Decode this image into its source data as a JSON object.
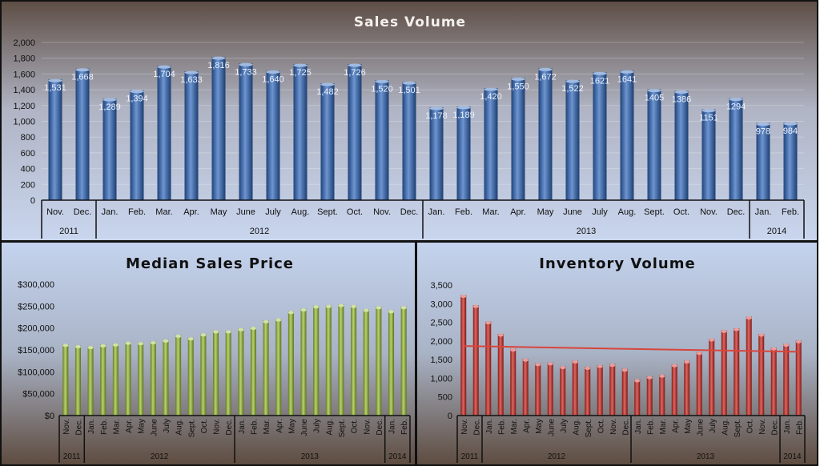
{
  "months": [
    "Nov.",
    "Dec.",
    "Jan.",
    "Feb.",
    "Mar.",
    "Apr.",
    "May",
    "June",
    "July",
    "Aug.",
    "Sept.",
    "Oct.",
    "Nov.",
    "Dec.",
    "Jan.",
    "Feb.",
    "Mar.",
    "Apr.",
    "May",
    "June",
    "July",
    "Aug.",
    "Sept.",
    "Oct.",
    "Nov.",
    "Dec.",
    "Jan.",
    "Feb."
  ],
  "years": [
    {
      "label": "2011",
      "count": 2
    },
    {
      "label": "2012",
      "count": 12
    },
    {
      "label": "2013",
      "count": 12
    },
    {
      "label": "2014",
      "count": 2
    }
  ],
  "chart_data": [
    {
      "id": "sales-volume",
      "type": "bar",
      "title": "Sales Volume",
      "color": "#2f67bd",
      "ylim": [
        0,
        2000
      ],
      "yticks": [
        0,
        200,
        400,
        600,
        800,
        1000,
        1200,
        1400,
        1600,
        1800,
        2000
      ],
      "ytick_labels": [
        "0",
        "200",
        "400",
        "600",
        "800",
        "1,000",
        "1,200",
        "1,400",
        "1,600",
        "1,800",
        "2,000"
      ],
      "grid": true,
      "values": [
        1531,
        1668,
        1289,
        1394,
        1704,
        1633,
        1816,
        1733,
        1640,
        1725,
        1482,
        1726,
        1520,
        1501,
        1178,
        1189,
        1420,
        1550,
        1672,
        1522,
        1621,
        1641,
        1405,
        1386,
        1151,
        1294,
        978,
        984
      ],
      "data_labels": [
        "1,531",
        "1,668",
        "1,289",
        "1,394",
        "1,704",
        "1,633",
        "1,816",
        "1,733",
        "1,640",
        "1,725",
        "1,482",
        "1,726",
        "1,520",
        "1,501",
        "1,178",
        "1,189",
        "1,420",
        "1,550",
        "1,672",
        "1,522",
        "1621",
        "1641",
        "1405",
        "1386",
        "1151",
        "1294",
        "978",
        "984"
      ]
    },
    {
      "id": "median-sales-price",
      "type": "bar",
      "title": "Median Sales Price",
      "color": "#9bc032",
      "ylim": [
        0,
        300000
      ],
      "yticks": [
        0,
        50000,
        100000,
        150000,
        200000,
        250000,
        300000
      ],
      "ytick_labels": [
        "$0",
        "$50,000",
        "$100,000",
        "$150,000",
        "$200,000",
        "$250,000",
        "$300,000"
      ],
      "grid": false,
      "values": [
        163000,
        160000,
        158000,
        162000,
        164000,
        168000,
        167000,
        169000,
        173000,
        184000,
        178000,
        187000,
        194000,
        194000,
        199000,
        202000,
        217000,
        221000,
        238000,
        244000,
        251000,
        252000,
        254000,
        252000,
        243000,
        249000,
        240000,
        249000
      ]
    },
    {
      "id": "inventory-volume",
      "type": "bar",
      "title": "Inventory Volume",
      "color": "#d0261f",
      "ylim": [
        0,
        3500
      ],
      "yticks": [
        0,
        500,
        1000,
        1500,
        2000,
        2500,
        3000,
        3500
      ],
      "ytick_labels": [
        "0",
        "500",
        "1,000",
        "1,500",
        "2,000",
        "2,500",
        "3,000",
        "3,500"
      ],
      "grid": false,
      "trendline": "linear",
      "values": [
        3230,
        2960,
        2520,
        2190,
        1790,
        1520,
        1400,
        1420,
        1320,
        1470,
        1300,
        1350,
        1380,
        1250,
        965,
        1050,
        1090,
        1370,
        1470,
        1700,
        2060,
        2290,
        2340,
        2650,
        2190,
        1820,
        1920,
        2010
      ]
    }
  ]
}
